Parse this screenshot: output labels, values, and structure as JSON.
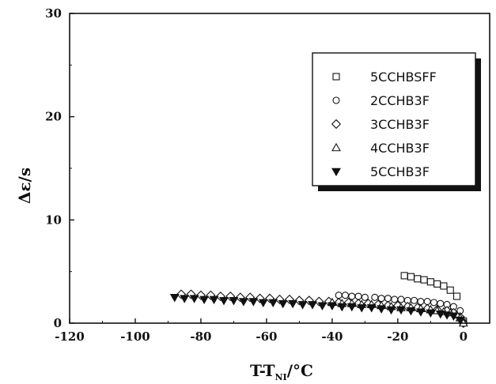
{
  "chart_data": {
    "type": "scatter",
    "title": "",
    "xlabel": "T-T",
    "xlabel_sub": "NI",
    "xlabel_unit": "/°C",
    "ylabel": "Δε/s",
    "xlim": [
      -120,
      8
    ],
    "ylim": [
      0,
      30
    ],
    "x_ticks": [
      -120,
      -100,
      -80,
      -60,
      -40,
      -20,
      0
    ],
    "y_ticks": [
      0,
      10,
      20,
      30
    ],
    "grid": false,
    "legend_position": "top-right",
    "series": [
      {
        "name": "5CCHBSFF",
        "marker": "square",
        "points": [
          [
            -18,
            4.6
          ],
          [
            -16,
            4.5
          ],
          [
            -14,
            4.3
          ],
          [
            -12,
            4.2
          ],
          [
            -10,
            4.0
          ],
          [
            -8,
            3.8
          ],
          [
            -6,
            3.6
          ],
          [
            -4,
            3.2
          ],
          [
            -2,
            2.6
          ],
          [
            0,
            0.2
          ]
        ]
      },
      {
        "name": "2CCHB3F",
        "marker": "circle",
        "points": [
          [
            -38,
            2.7
          ],
          [
            -36,
            2.7
          ],
          [
            -34,
            2.6
          ],
          [
            -32,
            2.6
          ],
          [
            -30,
            2.5
          ],
          [
            -27,
            2.5
          ],
          [
            -25,
            2.4
          ],
          [
            -23,
            2.4
          ],
          [
            -21,
            2.3
          ],
          [
            -19,
            2.3
          ],
          [
            -17,
            2.2
          ],
          [
            -15,
            2.2
          ],
          [
            -13,
            2.1
          ],
          [
            -11,
            2.1
          ],
          [
            -9,
            2.0
          ],
          [
            -7,
            1.9
          ],
          [
            -5,
            1.8
          ],
          [
            -3,
            1.6
          ],
          [
            -1,
            1.2
          ],
          [
            0,
            0.1
          ]
        ]
      },
      {
        "name": "3CCHB3F",
        "marker": "diamond",
        "points": [
          [
            -86,
            2.8
          ],
          [
            -83,
            2.8
          ],
          [
            -80,
            2.7
          ],
          [
            -77,
            2.7
          ],
          [
            -74,
            2.6
          ],
          [
            -71,
            2.6
          ],
          [
            -68,
            2.5
          ],
          [
            -65,
            2.5
          ],
          [
            -62,
            2.4
          ],
          [
            -59,
            2.4
          ],
          [
            -56,
            2.3
          ],
          [
            -53,
            2.3
          ],
          [
            -50,
            2.2
          ],
          [
            -47,
            2.2
          ],
          [
            -44,
            2.1
          ],
          [
            -41,
            2.1
          ],
          [
            -38,
            2.0
          ],
          [
            -35,
            2.0
          ],
          [
            -32,
            1.9
          ],
          [
            -29,
            1.9
          ],
          [
            -26,
            1.8
          ],
          [
            -23,
            1.7
          ],
          [
            -20,
            1.7
          ],
          [
            -17,
            1.6
          ],
          [
            -14,
            1.5
          ],
          [
            -11,
            1.4
          ],
          [
            -8,
            1.3
          ],
          [
            -5,
            1.2
          ],
          [
            -3,
            1.0
          ],
          [
            -1,
            0.6
          ],
          [
            0,
            0.0
          ]
        ]
      },
      {
        "name": "4CCHB3F",
        "marker": "triangle-up",
        "points": [
          [
            -40,
            2.0
          ],
          [
            -37,
            1.9
          ],
          [
            -34,
            1.9
          ],
          [
            -31,
            1.8
          ],
          [
            -28,
            1.8
          ],
          [
            -25,
            1.7
          ],
          [
            -22,
            1.6
          ],
          [
            -19,
            1.5
          ],
          [
            -16,
            1.5
          ],
          [
            -13,
            1.4
          ],
          [
            -10,
            1.3
          ],
          [
            -8,
            1.2
          ],
          [
            -6,
            1.1
          ],
          [
            -4,
            1.0
          ],
          [
            -2,
            0.8
          ],
          [
            -1,
            0.5
          ],
          [
            0,
            0.0
          ]
        ]
      },
      {
        "name": "5CCHB3F",
        "marker": "triangle-down-filled",
        "points": [
          [
            -88,
            2.5
          ],
          [
            -85,
            2.4
          ],
          [
            -82,
            2.4
          ],
          [
            -79,
            2.3
          ],
          [
            -76,
            2.3
          ],
          [
            -73,
            2.2
          ],
          [
            -70,
            2.2
          ],
          [
            -67,
            2.1
          ],
          [
            -64,
            2.1
          ],
          [
            -61,
            2.0
          ],
          [
            -58,
            2.0
          ],
          [
            -55,
            1.9
          ],
          [
            -52,
            1.9
          ],
          [
            -49,
            1.8
          ],
          [
            -46,
            1.8
          ],
          [
            -43,
            1.7
          ],
          [
            -40,
            1.7
          ],
          [
            -37,
            1.6
          ],
          [
            -34,
            1.6
          ],
          [
            -31,
            1.5
          ],
          [
            -28,
            1.5
          ],
          [
            -25,
            1.4
          ],
          [
            -22,
            1.3
          ],
          [
            -19,
            1.3
          ],
          [
            -16,
            1.2
          ],
          [
            -13,
            1.1
          ],
          [
            -10,
            1.0
          ],
          [
            -7,
            0.9
          ],
          [
            -5,
            0.8
          ],
          [
            -3,
            0.7
          ],
          [
            -1,
            0.3
          ]
        ]
      }
    ]
  }
}
